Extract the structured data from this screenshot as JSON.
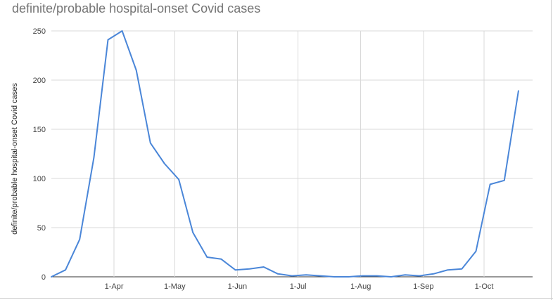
{
  "chart_data": {
    "type": "line",
    "title": "definite/probable hospital-onset Covid cases",
    "xlabel": "",
    "ylabel": "definite/probable hospital-onset Covid cases",
    "ylim": [
      0,
      250
    ],
    "yticks": [
      0,
      50,
      100,
      150,
      200,
      250
    ],
    "xlim": [
      "2020-03-01",
      "2020-10-25"
    ],
    "xticks": [
      {
        "label": "1-Apr",
        "date": "2020-04-01"
      },
      {
        "label": "1-May",
        "date": "2020-05-01"
      },
      {
        "label": "1-Jun",
        "date": "2020-06-01"
      },
      {
        "label": "1-Jul",
        "date": "2020-07-01"
      },
      {
        "label": "1-Aug",
        "date": "2020-08-01"
      },
      {
        "label": "1-Sep",
        "date": "2020-09-01"
      },
      {
        "label": "1-Oct",
        "date": "2020-10-01"
      }
    ],
    "grid": true,
    "line_color": "#4a86d8",
    "series": [
      {
        "x": [
          "2020-03-01",
          "2020-03-08",
          "2020-03-15",
          "2020-03-22",
          "2020-03-29",
          "2020-04-05",
          "2020-04-12",
          "2020-04-19",
          "2020-04-26",
          "2020-05-03",
          "2020-05-10",
          "2020-05-17",
          "2020-05-24",
          "2020-05-31",
          "2020-06-07",
          "2020-06-14",
          "2020-06-21",
          "2020-06-28",
          "2020-07-05",
          "2020-07-12",
          "2020-07-19",
          "2020-07-26",
          "2020-08-02",
          "2020-08-09",
          "2020-08-16",
          "2020-08-23",
          "2020-08-30",
          "2020-09-06",
          "2020-09-13",
          "2020-09-20",
          "2020-09-27",
          "2020-10-04",
          "2020-10-11",
          "2020-10-18",
          "2020-10-25"
        ],
        "values": [
          0,
          7,
          38,
          121,
          241,
          250,
          210,
          136,
          115,
          99,
          45,
          20,
          18,
          7,
          8,
          10,
          3,
          1,
          2,
          1,
          0,
          0,
          1,
          1,
          0,
          2,
          1,
          3,
          7,
          8,
          26,
          94,
          98,
          189,
          null
        ]
      }
    ]
  }
}
